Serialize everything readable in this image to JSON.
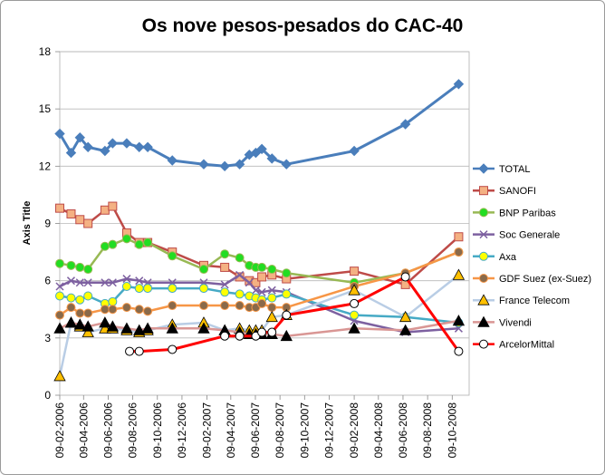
{
  "chart_data": {
    "type": "line",
    "title": "Os nove pesos-pesados do CAC-40",
    "xlabel": "",
    "ylabel": "Axis Title",
    "ylim": [
      0,
      18
    ],
    "yticks": [
      "0",
      "3",
      "6",
      "9",
      "12",
      "15",
      "18"
    ],
    "xlim": [
      "2006-02-09",
      "2008-11-20"
    ],
    "xticks": [
      "09-02-2006",
      "09-04-2006",
      "09-06-2006",
      "09-08-2006",
      "09-10-2006",
      "09-12-2006",
      "09-02-2007",
      "09-04-2007",
      "09-06-2007",
      "09-08-2007",
      "09-10-2007",
      "09-12-2007",
      "09-02-2008",
      "09-04-2008",
      "09-06-2008",
      "09-08-2008",
      "09-10-2008"
    ],
    "grid": "horizontal",
    "legend_position": "right",
    "series": [
      {
        "name": "TOTAL",
        "color": "#4a7ebb",
        "marker": "diamond",
        "x": [
          "2006-02-09",
          "2006-03-09",
          "2006-03-31",
          "2006-04-20",
          "2006-06-01",
          "2006-06-20",
          "2006-07-25",
          "2006-08-25",
          "2006-09-15",
          "2006-11-15",
          "2007-02-01",
          "2007-03-25",
          "2007-05-01",
          "2007-05-25",
          "2007-06-10",
          "2007-06-25",
          "2007-07-20",
          "2007-08-25",
          "2008-02-09",
          "2008-06-15",
          "2008-10-25"
        ],
        "y": [
          13.7,
          12.7,
          13.5,
          13.0,
          12.8,
          13.2,
          13.2,
          13.0,
          13.0,
          12.3,
          12.1,
          12.0,
          12.1,
          12.6,
          12.7,
          12.9,
          12.4,
          12.1,
          12.8,
          14.2,
          16.3
        ]
      },
      {
        "name": "SANOFI",
        "color": "#be4b48",
        "marker": "square",
        "x": [
          "2006-02-09",
          "2006-03-09",
          "2006-03-31",
          "2006-04-20",
          "2006-06-01",
          "2006-06-20",
          "2006-07-25",
          "2006-08-25",
          "2006-09-15",
          "2006-11-15",
          "2007-02-01",
          "2007-03-25",
          "2007-05-01",
          "2007-05-25",
          "2007-06-10",
          "2007-06-25",
          "2007-07-20",
          "2007-08-25",
          "2008-02-09",
          "2008-06-15",
          "2008-10-25"
        ],
        "y": [
          9.8,
          9.5,
          9.2,
          9.0,
          9.7,
          9.9,
          8.5,
          8.0,
          8.0,
          7.5,
          6.8,
          6.7,
          6.2,
          6.0,
          5.9,
          6.2,
          6.3,
          6.1,
          6.5,
          5.8,
          8.3
        ]
      },
      {
        "name": "BNP Paribas",
        "color": "#98b954",
        "marker": "circle",
        "fill": "#22dd22",
        "x": [
          "2006-02-09",
          "2006-03-09",
          "2006-03-31",
          "2006-04-20",
          "2006-06-01",
          "2006-06-20",
          "2006-07-25",
          "2006-08-25",
          "2006-09-15",
          "2006-11-15",
          "2007-02-01",
          "2007-03-25",
          "2007-05-01",
          "2007-05-25",
          "2007-06-10",
          "2007-06-25",
          "2007-07-20",
          "2007-08-25",
          "2008-02-09",
          "2008-06-15",
          "2008-10-25"
        ],
        "y": [
          6.9,
          6.8,
          6.7,
          6.6,
          7.8,
          7.9,
          8.2,
          7.9,
          8.0,
          7.3,
          6.6,
          7.4,
          7.2,
          6.8,
          6.7,
          6.7,
          6.6,
          6.4,
          5.9,
          6.4,
          7.5
        ]
      },
      {
        "name": "Soc Generale",
        "color": "#7d60a0",
        "marker": "x",
        "x": [
          "2006-02-09",
          "2006-03-09",
          "2006-03-31",
          "2006-04-20",
          "2006-06-01",
          "2006-06-20",
          "2006-07-25",
          "2006-08-25",
          "2006-09-15",
          "2006-11-15",
          "2007-02-01",
          "2007-03-25",
          "2007-05-01",
          "2007-05-25",
          "2007-06-10",
          "2007-06-25",
          "2007-07-20",
          "2007-08-25",
          "2008-02-09",
          "2008-06-15",
          "2008-10-25"
        ],
        "y": [
          5.7,
          6.0,
          5.9,
          5.9,
          5.9,
          5.9,
          6.1,
          6.0,
          5.9,
          5.9,
          5.9,
          5.8,
          6.3,
          5.9,
          5.5,
          5.4,
          5.5,
          5.4,
          3.9,
          3.3,
          3.5
        ]
      },
      {
        "name": "Axa",
        "color": "#46aac5",
        "marker": "circle",
        "fill": "#ffff00",
        "x": [
          "2006-02-09",
          "2006-03-09",
          "2006-03-31",
          "2006-04-20",
          "2006-06-01",
          "2006-06-20",
          "2006-07-25",
          "2006-08-25",
          "2006-09-15",
          "2006-11-15",
          "2007-02-01",
          "2007-03-25",
          "2007-05-01",
          "2007-05-25",
          "2007-06-10",
          "2007-06-25",
          "2007-07-20",
          "2007-08-25",
          "2008-02-09",
          "2008-06-15",
          "2008-10-25"
        ],
        "y": [
          5.2,
          5.1,
          5.0,
          5.2,
          4.8,
          4.9,
          5.7,
          5.6,
          5.6,
          5.6,
          5.6,
          5.4,
          5.3,
          5.2,
          5.1,
          5.0,
          5.1,
          5.3,
          4.2,
          4.1,
          3.8
        ]
      },
      {
        "name": "GDF Suez (ex-Suez)",
        "color": "#f79646",
        "marker": "circle",
        "fill": "#8a6a4a",
        "x": [
          "2006-02-09",
          "2006-03-09",
          "2006-03-31",
          "2006-04-20",
          "2006-06-01",
          "2006-06-20",
          "2006-07-25",
          "2006-08-25",
          "2006-09-15",
          "2006-11-15",
          "2007-02-01",
          "2007-03-25",
          "2007-05-01",
          "2007-05-25",
          "2007-06-10",
          "2007-06-25",
          "2007-07-20",
          "2007-08-25",
          "2008-02-09",
          "2008-06-15",
          "2008-10-25"
        ],
        "y": [
          4.2,
          4.6,
          4.3,
          4.3,
          4.5,
          4.5,
          4.6,
          4.5,
          4.4,
          4.7,
          4.7,
          4.7,
          4.7,
          4.6,
          4.6,
          4.8,
          4.6,
          4.6,
          5.7,
          6.4,
          7.5
        ]
      },
      {
        "name": "France Telecom",
        "color": "#b9cde5",
        "marker": "triangle",
        "fill": "#ffc000",
        "x": [
          "2006-02-09",
          "2006-03-09",
          "2006-03-31",
          "2006-04-20",
          "2006-06-01",
          "2006-06-20",
          "2006-07-25",
          "2006-08-25",
          "2006-09-15",
          "2006-11-15",
          "2007-02-01",
          "2007-03-25",
          "2007-05-01",
          "2007-05-25",
          "2007-06-10",
          "2007-06-25",
          "2007-07-20",
          "2007-08-25",
          "2008-02-09",
          "2008-06-15",
          "2008-10-25"
        ],
        "y": [
          1.0,
          3.8,
          3.6,
          3.3,
          3.5,
          3.5,
          3.4,
          3.3,
          3.4,
          3.7,
          3.8,
          3.4,
          3.5,
          3.4,
          3.4,
          3.4,
          4.1,
          4.2,
          5.5,
          4.1,
          6.3
        ]
      },
      {
        "name": "Vivendi",
        "color": "#d99694",
        "marker": "triangle",
        "fill": "#000000",
        "x": [
          "2006-02-09",
          "2006-03-09",
          "2006-03-31",
          "2006-04-20",
          "2006-06-01",
          "2006-06-20",
          "2006-07-25",
          "2006-08-25",
          "2006-09-15",
          "2006-11-15",
          "2007-02-01",
          "2007-03-25",
          "2007-05-01",
          "2007-05-25",
          "2007-06-10",
          "2007-06-25",
          "2007-07-20",
          "2007-08-25",
          "2008-02-09",
          "2008-06-15",
          "2008-10-25"
        ],
        "y": [
          3.5,
          3.8,
          3.7,
          3.6,
          3.8,
          3.6,
          3.5,
          3.4,
          3.5,
          3.5,
          3.5,
          3.4,
          3.3,
          3.2,
          3.2,
          3.2,
          3.2,
          3.1,
          3.5,
          3.4,
          3.9
        ]
      },
      {
        "name": "ArcelorMittal",
        "color": "#ff0000",
        "marker": "circle",
        "fill": "#ffffff",
        "x": [
          "2006-08-01",
          "2006-08-25",
          "2006-11-15",
          "2007-03-25",
          "2007-05-01",
          "2007-06-10",
          "2007-06-25",
          "2007-07-20",
          "2007-08-25",
          "2008-02-09",
          "2008-06-15",
          "2008-10-25"
        ],
        "y": [
          2.3,
          2.3,
          2.4,
          3.1,
          3.1,
          3.1,
          3.3,
          3.3,
          4.2,
          4.8,
          6.2,
          2.3
        ]
      }
    ]
  }
}
